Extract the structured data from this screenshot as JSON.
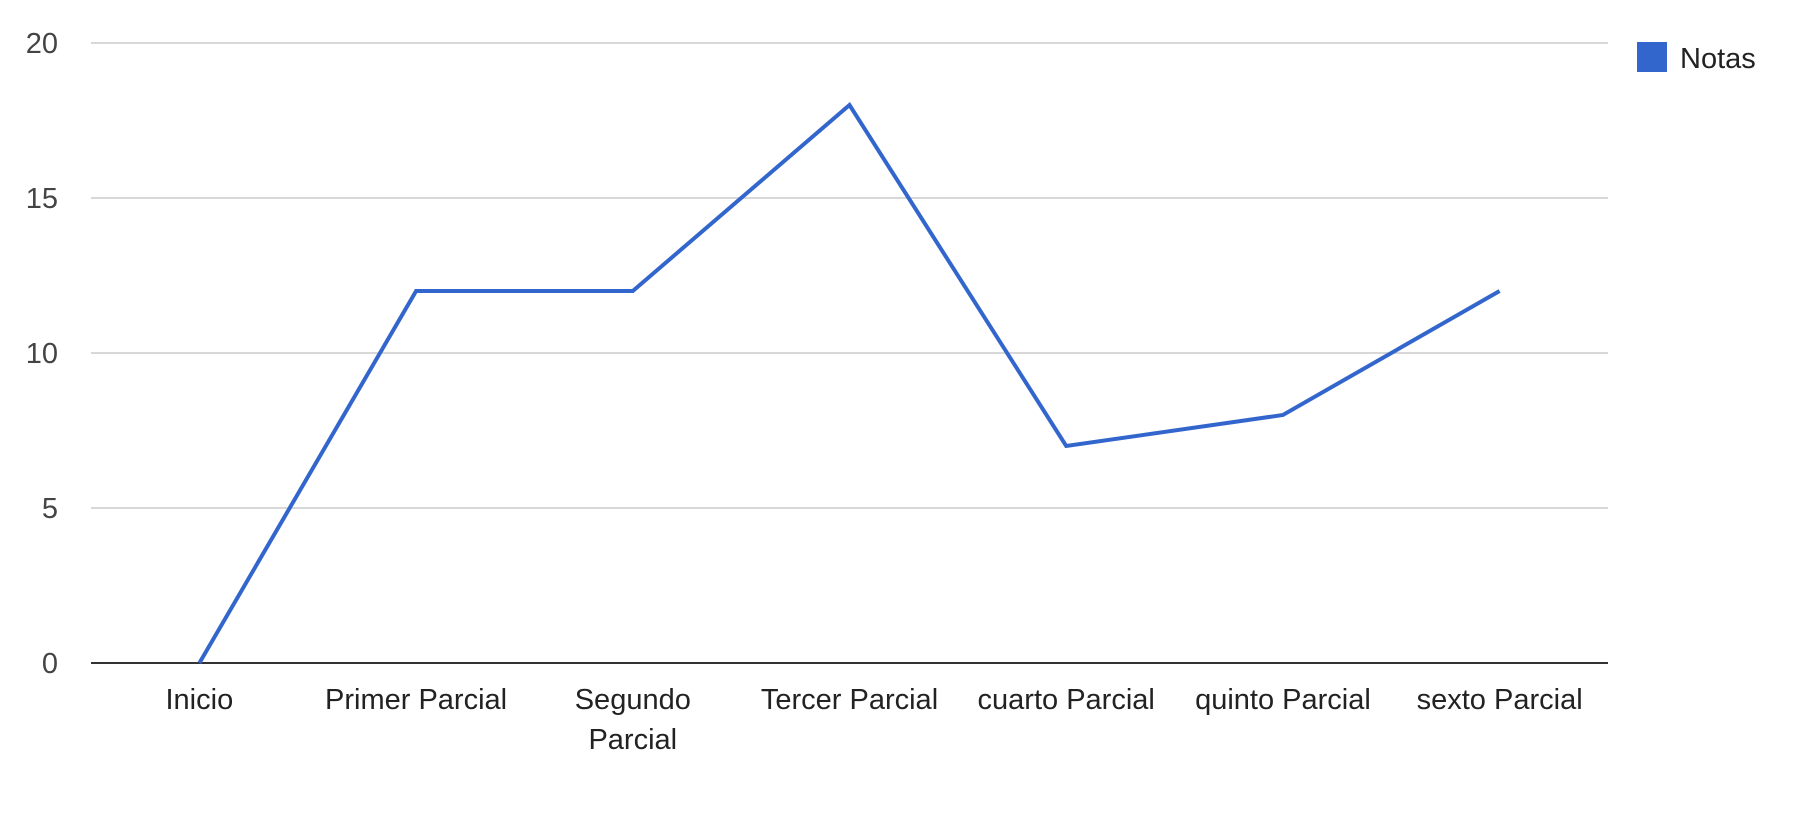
{
  "chart_data": {
    "type": "line",
    "title": "",
    "xlabel": "",
    "ylabel": "",
    "categories": [
      "Inicio",
      "Primer Parcial",
      "Segundo Parcial",
      "Tercer Parcial",
      "cuarto Parcial",
      "quinto Parcial",
      "sexto Parcial"
    ],
    "categories_display": [
      [
        "Inicio"
      ],
      [
        "Primer Parcial"
      ],
      [
        "Segundo",
        "Parcial"
      ],
      [
        "Tercer Parcial"
      ],
      [
        "cuarto Parcial"
      ],
      [
        "quinto Parcial"
      ],
      [
        "sexto Parcial"
      ]
    ],
    "series": [
      {
        "name": "Notas",
        "values": [
          0,
          12,
          12,
          18,
          7,
          8,
          12
        ],
        "color": "#3366cc"
      }
    ],
    "ylim": [
      0,
      20
    ],
    "yticks": [
      0,
      5,
      10,
      15,
      20
    ],
    "grid": true,
    "legend": "top-right",
    "gridline_color": "#cccccc",
    "baseline_color": "#333333",
    "text_color": "#444444"
  }
}
